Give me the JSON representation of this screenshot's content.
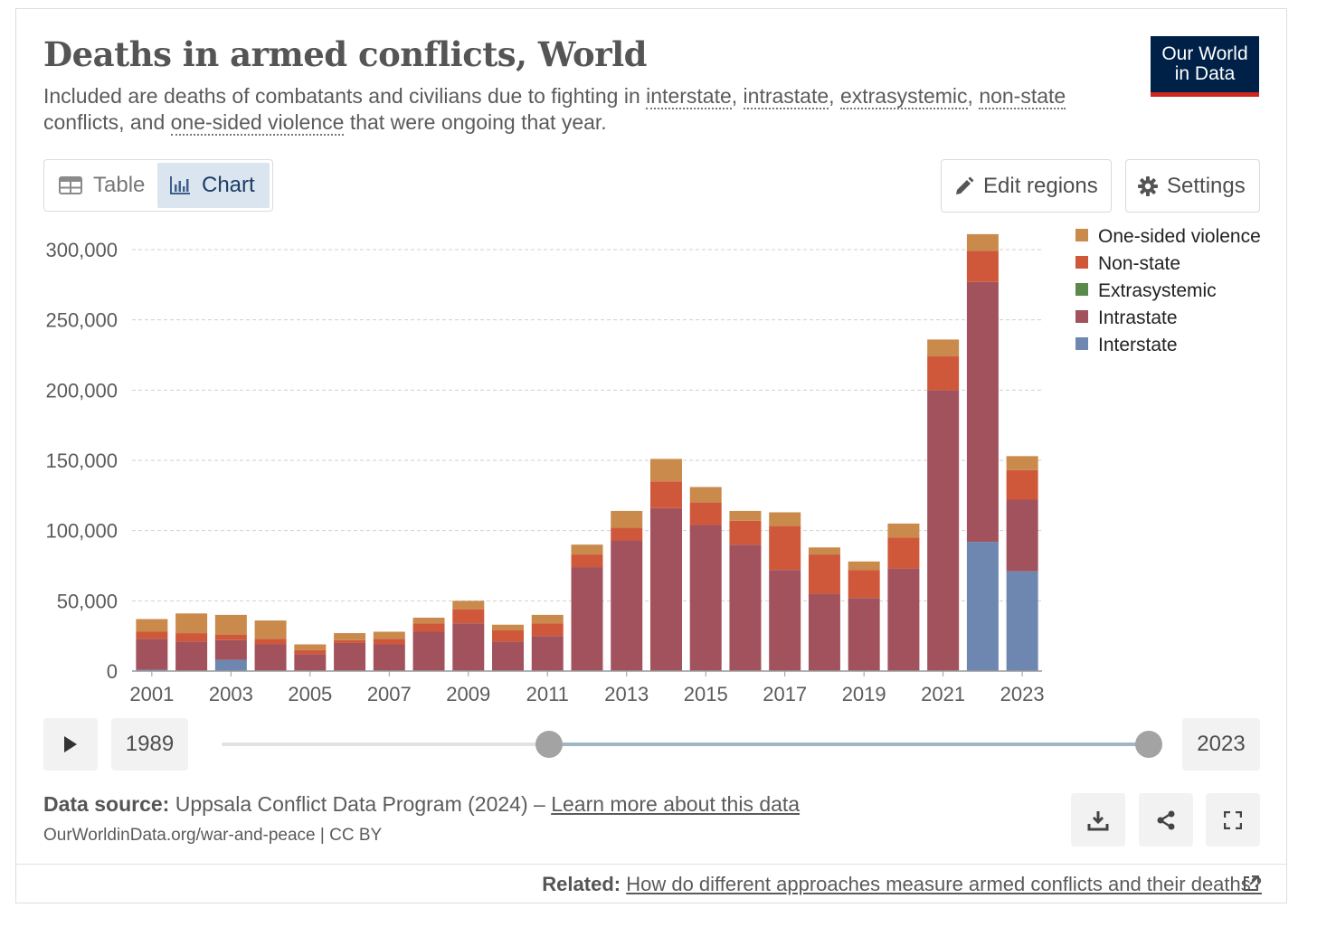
{
  "header": {
    "title": "Deaths in armed conflicts, World",
    "subtitle": {
      "p1": "Included are deaths of combatants and civilians due to fighting in ",
      "interstate": "interstate",
      "sep1": ", ",
      "intrastate": "intrastate",
      "sep2": ", ",
      "extrasystemic": "extrasystemic",
      "sep3": ", ",
      "nonstate": "non-state",
      "p2": " conflicts, and ",
      "onesided": "one-sided violence",
      "p3": " that were ongoing that year."
    },
    "logo_line1": "Our World",
    "logo_line2": "in Data",
    "logo_color": "#002147",
    "logo_accent": "#ce261e"
  },
  "controls": {
    "tab_table": "Table",
    "tab_chart": "Chart",
    "edit_regions": "Edit regions",
    "settings": "Settings"
  },
  "timeline": {
    "start_year": "1989",
    "end_year": "2023",
    "selected_start": 2001,
    "selected_end": 2023
  },
  "footer": {
    "source_label": "Data source:",
    "source_text": " Uppsala Conflict Data Program (2024) – ",
    "learn_more": "Learn more about this data",
    "url": "OurWorldinData.org/war-and-peace | CC BY",
    "related_label": "Related:",
    "related_link": "How do different approaches measure armed conflicts and their deaths?"
  },
  "chart_data": {
    "type": "bar",
    "stacked": true,
    "categories": [
      2001,
      2002,
      2003,
      2004,
      2005,
      2006,
      2007,
      2008,
      2009,
      2010,
      2011,
      2012,
      2013,
      2014,
      2015,
      2016,
      2017,
      2018,
      2019,
      2020,
      2021,
      2022,
      2023
    ],
    "x_tick_labels": [
      "2001",
      "2003",
      "2005",
      "2007",
      "2009",
      "2011",
      "2013",
      "2015",
      "2017",
      "2019",
      "2021",
      "2023"
    ],
    "y_tick_labels": [
      "0",
      "50,000",
      "100,000",
      "150,000",
      "200,000",
      "250,000",
      "300,000"
    ],
    "ylim": [
      0,
      300000
    ],
    "grid": true,
    "legend_position": "right",
    "series": [
      {
        "name": "Interstate",
        "color": "#6d87b0",
        "values": [
          1000,
          0,
          8000,
          0,
          0,
          0,
          0,
          0,
          0,
          0,
          0,
          0,
          0,
          0,
          0,
          0,
          0,
          0,
          0,
          0,
          0,
          92000,
          71000
        ]
      },
      {
        "name": "Intrastate",
        "color": "#a2525c",
        "values": [
          22000,
          21000,
          14000,
          19000,
          12000,
          20000,
          19000,
          28000,
          34000,
          21000,
          25000,
          74000,
          93000,
          116000,
          104000,
          90000,
          72000,
          55000,
          52000,
          73000,
          200000,
          185000,
          51000
        ]
      },
      {
        "name": "Extrasystemic",
        "color": "#5a8a4a",
        "values": [
          0,
          0,
          0,
          0,
          0,
          0,
          0,
          0,
          0,
          0,
          0,
          0,
          0,
          0,
          0,
          0,
          0,
          0,
          0,
          0,
          0,
          0,
          0
        ]
      },
      {
        "name": "Non-state",
        "color": "#d0583a",
        "values": [
          5000,
          6000,
          4000,
          4000,
          3000,
          2000,
          4000,
          6000,
          10000,
          8000,
          9000,
          9000,
          9000,
          19000,
          16000,
          17000,
          31000,
          28000,
          20000,
          22000,
          24000,
          22000,
          21000
        ]
      },
      {
        "name": "One-sided violence",
        "color": "#c98a4b",
        "values": [
          9000,
          14000,
          14000,
          13000,
          4000,
          5000,
          5000,
          4000,
          6000,
          4000,
          6000,
          7000,
          12000,
          16000,
          11000,
          7000,
          10000,
          5000,
          6000,
          10000,
          12000,
          12000,
          10000
        ]
      }
    ]
  }
}
